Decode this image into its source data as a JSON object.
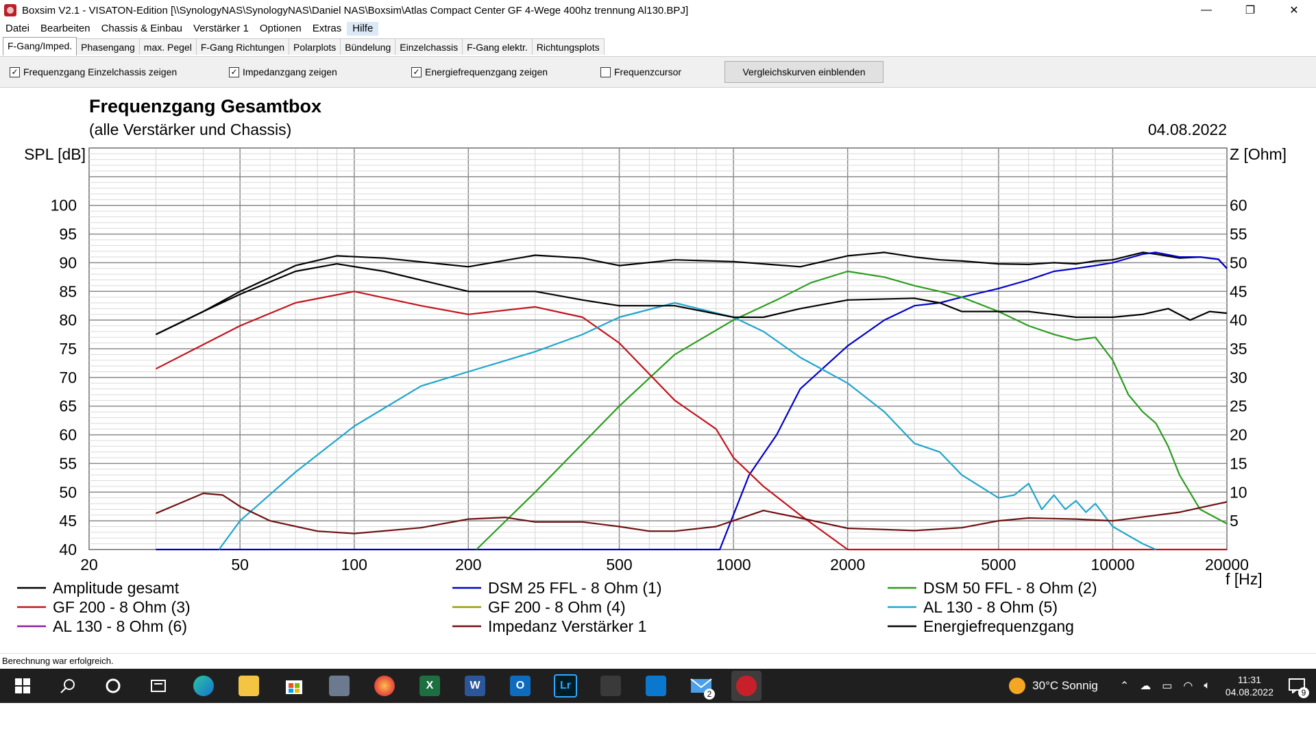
{
  "window": {
    "title": "Boxsim V2.1 - VISATON-Edition [\\\\SynologyNAS\\SynologyNAS\\Daniel NAS\\Boxsim\\Atlas Compact Center GF 4-Wege 400hz trennung Al130.BPJ]",
    "min": "—",
    "max": "❐",
    "close": "✕"
  },
  "menu": [
    "Datei",
    "Bearbeiten",
    "Chassis & Einbau",
    "Verstärker 1",
    "Optionen",
    "Extras",
    "Hilfe"
  ],
  "tabs": [
    "F-Gang/Imped.",
    "Phasengang",
    "max. Pegel",
    "F-Gang Richtungen",
    "Polarplots",
    "Bündelung",
    "Einzelchassis",
    "F-Gang elektr.",
    "Richtungsplots"
  ],
  "toolbar": {
    "chk1": "Frequenzgang Einzelchassis zeigen",
    "chk2": "Impedanzgang zeigen",
    "chk3": "Energiefrequenzgang zeigen",
    "chk4": "Frequenzcursor",
    "compare_button": "Vergleichskurven einblenden",
    "check": "✓"
  },
  "chart_data": {
    "type": "line",
    "title": "Frequenzgang Gesamtbox",
    "subtitle": "(alle Verstärker und Chassis)",
    "date": "04.08.2022",
    "ylabel": "SPL [dB]",
    "y2label": "Z [Ohm]",
    "xlabel": "f [Hz]",
    "xscale": "log",
    "xlim": [
      20,
      20000
    ],
    "ylim": [
      40,
      110
    ],
    "y2lim": [
      0,
      70
    ],
    "xticks": [
      20,
      50,
      100,
      200,
      500,
      1000,
      2000,
      5000,
      10000,
      20000
    ],
    "yticks": [
      40,
      45,
      50,
      55,
      60,
      65,
      70,
      75,
      80,
      85,
      90,
      95,
      100
    ],
    "y2ticks": [
      5,
      10,
      15,
      20,
      25,
      30,
      35,
      40,
      45,
      50,
      55,
      60
    ],
    "series": [
      {
        "name": "Amplitude gesamt",
        "color": "#000000",
        "x": [
          30,
          40,
          50,
          70,
          90,
          120,
          200,
          300,
          400,
          500,
          700,
          1000,
          1500,
          2000,
          2500,
          3000,
          3500,
          4000,
          5000,
          6000,
          7000,
          8000,
          9000,
          10000,
          12000,
          13000,
          15000,
          17000,
          19000,
          20000
        ],
        "y": [
          77.5,
          81.5,
          85,
          89.5,
          91.2,
          90.8,
          89.3,
          91.3,
          90.8,
          89.5,
          90.5,
          90.2,
          89.3,
          91.2,
          91.8,
          91,
          90.5,
          90.3,
          89.8,
          89.7,
          90,
          89.8,
          90.3,
          90.5,
          91.8,
          91.5,
          90.8,
          91,
          90.6,
          89
        ]
      },
      {
        "name": "DSM 25 FFL - 8 Ohm (1)",
        "color": "#0000c8",
        "x": [
          30,
          920,
          1100,
          1300,
          1500,
          2000,
          2500,
          3000,
          3500,
          4000,
          5000,
          6000,
          7000,
          8000,
          9000,
          10000,
          12000,
          13000,
          15000,
          17000,
          19000,
          20000
        ],
        "y": [
          40,
          40,
          53,
          60,
          68,
          75.5,
          80,
          82.5,
          83,
          84,
          85.5,
          87,
          88.5,
          89,
          89.5,
          90,
          91.5,
          91.8,
          91,
          91,
          90.6,
          89
        ]
      },
      {
        "name": "DSM 50 FFL - 8 Ohm (2)",
        "color": "#2a9d1d",
        "x": [
          210,
          300,
          500,
          700,
          1000,
          1300,
          1600,
          2000,
          2500,
          3000,
          3500,
          4000,
          5000,
          6000,
          7000,
          8000,
          9000,
          10000,
          11000,
          12000,
          13000,
          14000,
          15000,
          17000,
          20000
        ],
        "y": [
          40,
          50,
          65,
          74,
          80,
          83.5,
          86.5,
          88.5,
          87.5,
          86,
          85,
          84,
          81.5,
          79,
          77.5,
          76.5,
          77,
          73,
          67,
          64,
          62,
          58,
          53,
          47,
          44.5
        ]
      },
      {
        "name": "GF 200 - 8 Ohm (3)",
        "color": "#c0141c",
        "x": [
          30,
          50,
          70,
          100,
          150,
          200,
          300,
          400,
          500,
          700,
          900,
          1000,
          1200,
          1500,
          2000,
          20000
        ],
        "y": [
          71.5,
          79,
          83,
          85,
          82.5,
          81,
          82.3,
          80.5,
          76,
          66,
          61,
          56,
          51,
          46,
          40,
          40
        ]
      },
      {
        "name": "GF 200 - 8 Ohm (4)",
        "color": "#9a9a00",
        "x": [],
        "y": []
      },
      {
        "name": "AL 130 - 8 Ohm (5)",
        "color": "#1ea5cc",
        "x": [
          44,
          50,
          70,
          100,
          150,
          200,
          300,
          400,
          500,
          700,
          1000,
          1200,
          1500,
          2000,
          2500,
          3000,
          3500,
          4000,
          5000,
          5500,
          6000,
          6500,
          7000,
          7500,
          8000,
          8500,
          9000,
          10000,
          12000,
          13000
        ],
        "y": [
          40,
          45,
          53.5,
          61.5,
          68.5,
          71,
          74.5,
          77.5,
          80.5,
          83,
          80.5,
          78,
          73.5,
          69,
          64,
          58.5,
          57,
          53,
          49,
          49.5,
          51.5,
          47,
          49.5,
          47,
          48.5,
          46.5,
          48,
          44,
          41,
          40
        ]
      },
      {
        "name": "AL 130 - 8 Ohm (6)",
        "color": "#8a1ea0",
        "x": [],
        "y": []
      },
      {
        "name": "Impedanz Verstärker 1",
        "color": "#6e1010",
        "x": [
          30,
          40,
          45,
          50,
          60,
          80,
          100,
          150,
          200,
          250,
          300,
          400,
          500,
          600,
          700,
          900,
          1200,
          1500,
          2000,
          3000,
          4000,
          5000,
          6000,
          8000,
          10000,
          15000,
          20000
        ],
        "y": [
          6.3,
          9.8,
          9.5,
          7.5,
          5,
          3.2,
          2.8,
          3.8,
          5.3,
          5.6,
          4.8,
          4.8,
          4,
          3.2,
          3.2,
          4,
          6.8,
          5.5,
          3.7,
          3.3,
          3.8,
          5,
          5.5,
          5.3,
          5,
          6.5,
          8.3
        ]
      },
      {
        "name": "Energiefrequenzgang",
        "color": "#000000",
        "x": [
          30,
          40,
          50,
          70,
          90,
          120,
          200,
          300,
          400,
          500,
          700,
          1000,
          1200,
          1500,
          2000,
          3000,
          3500,
          4000,
          5000,
          6000,
          8000,
          10000,
          12000,
          14000,
          16000,
          18000,
          20000
        ],
        "y": [
          77.5,
          81.5,
          84.5,
          88.5,
          89.8,
          88.5,
          85,
          85,
          83.5,
          82.5,
          82.5,
          80.5,
          80.5,
          82,
          83.5,
          83.8,
          83,
          81.5,
          81.5,
          81.5,
          80.5,
          80.5,
          81,
          82,
          80,
          81.5,
          81.2
        ]
      }
    ]
  },
  "status_text": "Berechnung war erfolgreich.",
  "taskbar": {
    "apps": [
      "windows-start",
      "search",
      "cortana",
      "task-view",
      "edge",
      "explorer",
      "store",
      "calculator",
      "firefox",
      "excel",
      "word",
      "outlook",
      "lightroom",
      "folder",
      "snipping",
      "mail",
      "boxsim"
    ],
    "excel_label": "X",
    "word_label": "W",
    "outlook_label": "O",
    "lightroom_label": "Lr",
    "mail_badge": "2",
    "weather": "30°C  Sonnig",
    "time": "11:31",
    "date": "04.08.2022",
    "notif_badge": "9"
  }
}
